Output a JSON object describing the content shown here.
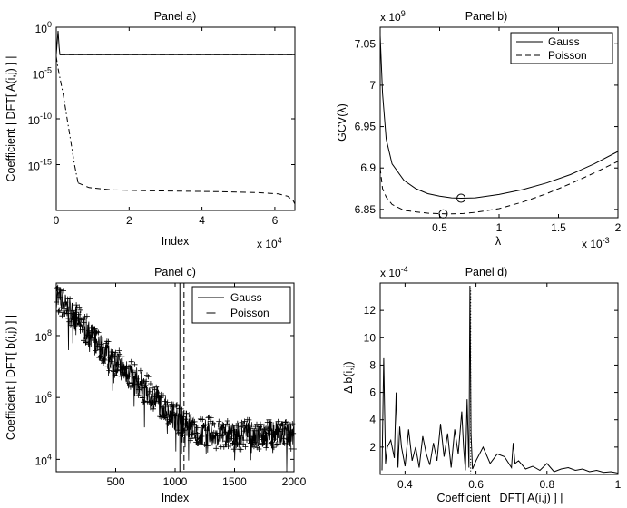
{
  "chart_data": [
    {
      "type": "line",
      "title": "Panel a)",
      "xlabel": "Index",
      "ylabel": "Coefficient | DFT[ A(i,j) ] |",
      "x_multiplier": "x 10",
      "x_multiplier_exp": "4",
      "xlim": [
        0,
        6.55
      ],
      "yscale": "log",
      "ylim_log10": [
        -20,
        0
      ],
      "x_ticks": [
        "0",
        "2",
        "4",
        "6"
      ],
      "y_ticks": [
        {
          "base": "10",
          "exp": "0"
        },
        {
          "base": "10",
          "exp": "-5"
        },
        {
          "base": "10",
          "exp": "-10"
        },
        {
          "base": "10",
          "exp": "-15"
        }
      ],
      "series": [
        {
          "name": "solid",
          "style": "solid",
          "x": [
            0,
            0.05,
            0.08,
            0.1,
            6.55
          ],
          "log10_y": [
            -3,
            -0.4,
            -2.2,
            -3.0,
            -3.0
          ]
        },
        {
          "name": "dashed",
          "style": "dashed",
          "x": [
            0.1,
            6.55
          ],
          "log10_y": [
            -3.0,
            -3.0
          ]
        },
        {
          "name": "dashdot",
          "style": "dashdot",
          "x": [
            0,
            0.05,
            0.1,
            0.2,
            0.3,
            0.4,
            0.5,
            0.6
          ],
          "log10_y": [
            -3.2,
            -4.5,
            -5.5,
            -7.5,
            -10,
            -12.5,
            -15,
            -17
          ]
        },
        {
          "name": "tail",
          "style": "dashed",
          "x": [
            0.6,
            0.9,
            1.5,
            2.5,
            3.5,
            4.5,
            5.5,
            6.1,
            6.35,
            6.5,
            6.55
          ],
          "log10_y": [
            -17,
            -17.5,
            -17.75,
            -17.85,
            -17.9,
            -17.95,
            -18.05,
            -18.2,
            -18.45,
            -18.9,
            -19.3
          ]
        }
      ]
    },
    {
      "type": "line",
      "title": "Panel b)",
      "xlabel": "λ",
      "ylabel": "GCV(λ)",
      "x_multiplier": "x 10",
      "x_multiplier_exp": "-3",
      "y_multiplier": "x 10",
      "y_multiplier_exp": "9",
      "xlim": [
        0,
        2
      ],
      "ylim": [
        6.84,
        7.07
      ],
      "x_ticks": [
        "0.5",
        "1",
        "1.5",
        "2"
      ],
      "y_ticks": [
        "6.85",
        "6.9",
        "6.95",
        "7",
        "7.05"
      ],
      "legend": [
        "Gauss",
        "Poisson"
      ],
      "legend_position": "top-right",
      "series": [
        {
          "name": "Gauss",
          "style": "solid",
          "x": [
            0.0,
            0.02,
            0.05,
            0.1,
            0.2,
            0.3,
            0.4,
            0.5,
            0.6,
            0.68,
            0.8,
            1.0,
            1.2,
            1.4,
            1.6,
            1.8,
            2.0
          ],
          "y": [
            7.06,
            6.99,
            6.935,
            6.905,
            6.885,
            6.875,
            6.869,
            6.866,
            6.864,
            6.8635,
            6.864,
            6.868,
            6.874,
            6.882,
            6.892,
            6.905,
            6.92
          ]
        },
        {
          "name": "Poisson",
          "style": "dashed",
          "x": [
            0.0,
            0.02,
            0.05,
            0.1,
            0.2,
            0.3,
            0.4,
            0.5,
            0.55,
            0.6,
            0.7,
            0.8,
            1.0,
            1.2,
            1.4,
            1.6,
            1.8,
            2.0
          ],
          "y": [
            6.9,
            6.875,
            6.865,
            6.856,
            6.849,
            6.847,
            6.8455,
            6.8448,
            6.8446,
            6.8447,
            6.845,
            6.8465,
            6.851,
            6.859,
            6.869,
            6.881,
            6.894,
            6.908
          ]
        }
      ],
      "markers": [
        {
          "x": 0.68,
          "y": 6.8635
        },
        {
          "x": 0.53,
          "y": 6.8446
        }
      ]
    },
    {
      "type": "scatter",
      "title": "Panel c)",
      "xlabel": "Index",
      "ylabel": "Coefficient | DFT[ b(i,j) ] |",
      "xlim": [
        0,
        2000
      ],
      "yscale": "log",
      "ylim_log10": [
        3.6,
        9.7
      ],
      "x_ticks": [
        "500",
        "1000",
        "1500",
        "2000"
      ],
      "y_ticks": [
        {
          "base": "10",
          "exp": "8"
        },
        {
          "base": "10",
          "exp": "6"
        },
        {
          "base": "10",
          "exp": "4"
        }
      ],
      "legend": [
        "Gauss",
        "Poisson"
      ],
      "legend_position": "top-right",
      "envelope_log10": [
        [
          0,
          9.3
        ],
        [
          200,
          8.4
        ],
        [
          400,
          7.5
        ],
        [
          600,
          6.8
        ],
        [
          800,
          6.1
        ],
        [
          1000,
          5.4
        ],
        [
          1200,
          4.9
        ],
        [
          1500,
          4.8
        ],
        [
          2000,
          4.8
        ]
      ],
      "vertical_lines": [
        {
          "name": "Gauss",
          "x": 1040,
          "style": "solid"
        },
        {
          "name": "Poisson",
          "x": 1075,
          "style": "dashed"
        }
      ]
    },
    {
      "type": "line",
      "title": "Panel d)",
      "xlabel": "Coefficient | DFT[ A(i,j) ] |",
      "ylabel": "Δ b(i,j)",
      "y_multiplier": "x 10",
      "y_multiplier_exp": "-4",
      "xlim": [
        0.33,
        1.0
      ],
      "ylim": [
        0,
        14
      ],
      "x_ticks": [
        "0.4",
        "0.6",
        "0.8",
        "1"
      ],
      "y_ticks": [
        "2",
        "4",
        "6",
        "8",
        "10",
        "12"
      ],
      "series": [
        {
          "name": "solid",
          "style": "solid",
          "x": [
            0.335,
            0.34,
            0.345,
            0.35,
            0.36,
            0.37,
            0.375,
            0.38,
            0.385,
            0.39,
            0.4,
            0.41,
            0.42,
            0.43,
            0.44,
            0.45,
            0.46,
            0.47,
            0.48,
            0.49,
            0.5,
            0.51,
            0.52,
            0.53,
            0.54,
            0.55,
            0.56,
            0.565,
            0.57,
            0.575,
            0.58,
            0.583,
            0.586,
            0.59,
            0.6,
            0.62,
            0.64,
            0.66,
            0.68,
            0.7,
            0.705,
            0.71,
            0.72,
            0.74,
            0.76,
            0.78,
            0.8,
            0.82,
            0.84,
            0.86,
            0.88,
            0.9,
            0.92,
            0.94,
            0.96,
            0.98,
            1.0
          ],
          "y": [
            0.3,
            8.5,
            0.8,
            2.0,
            2.5,
            1.2,
            6.0,
            0.5,
            3.5,
            2.0,
            0.6,
            3.3,
            1.0,
            2.0,
            0.5,
            2.8,
            1.5,
            0.7,
            2.3,
            1.0,
            3.7,
            1.3,
            3.0,
            0.5,
            3.3,
            1.5,
            4.6,
            2.0,
            0.3,
            5.5,
            0.5,
            13.8,
            3.0,
            0.4,
            1.0,
            2.0,
            0.8,
            1.5,
            1.3,
            0.5,
            2.3,
            0.8,
            1.0,
            0.4,
            0.6,
            0.3,
            0.8,
            0.2,
            0.4,
            0.5,
            0.3,
            0.4,
            0.2,
            0.3,
            0.15,
            0.2,
            0.1
          ]
        },
        {
          "name": "dotted",
          "style": "dotted",
          "x": [
            0.585,
            0.585
          ],
          "y": [
            0,
            13.8
          ]
        }
      ]
    }
  ]
}
